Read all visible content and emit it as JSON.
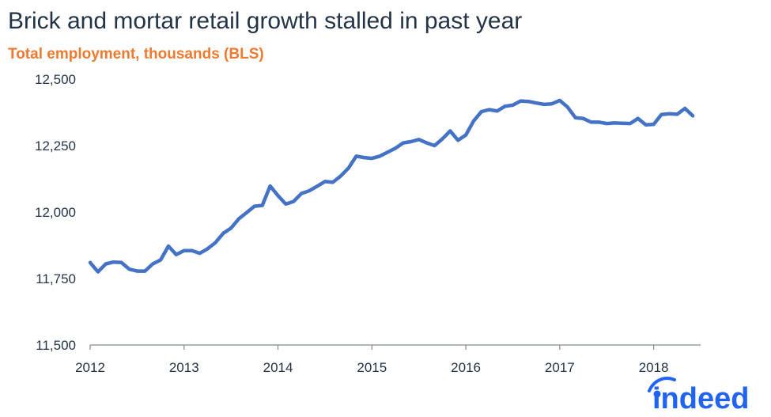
{
  "title": "Brick and mortar retail growth stalled in past year",
  "subtitle": "Total employment, thousands (BLS)",
  "brand": {
    "name": "indeed",
    "color": "#2164f3",
    "icon": "indeed-logo"
  },
  "colors": {
    "line": "#4472c4",
    "title": "#243447",
    "subtitle": "#ee7a30",
    "axis": "#7f8a97"
  },
  "chart_data": {
    "type": "line",
    "title": "Brick and mortar retail growth stalled in past year",
    "subtitle": "Total employment, thousands (BLS)",
    "xlabel": "",
    "ylabel": "",
    "ylim": [
      11500,
      12500
    ],
    "yticks": [
      11500,
      11750,
      12000,
      12250,
      12500
    ],
    "ytick_labels": [
      "11,500",
      "11,750",
      "12,000",
      "12,250",
      "12,500"
    ],
    "xlim": [
      "2012-01",
      "2018-07"
    ],
    "xticks": [
      "2012",
      "2013",
      "2014",
      "2015",
      "2016",
      "2017",
      "2018"
    ],
    "grid": false,
    "legend": "none",
    "series": [
      {
        "x": [
          "2012-01",
          "2012-02",
          "2012-03",
          "2012-04",
          "2012-05",
          "2012-06",
          "2012-07",
          "2012-08",
          "2012-09",
          "2012-10",
          "2012-11",
          "2012-12",
          "2013-01",
          "2013-02",
          "2013-03",
          "2013-04",
          "2013-05",
          "2013-06",
          "2013-07",
          "2013-08",
          "2013-09",
          "2013-10",
          "2013-11",
          "2013-12",
          "2014-01",
          "2014-02",
          "2014-03",
          "2014-04",
          "2014-05",
          "2014-06",
          "2014-07",
          "2014-08",
          "2014-09",
          "2014-10",
          "2014-11",
          "2014-12",
          "2015-01",
          "2015-02",
          "2015-03",
          "2015-04",
          "2015-05",
          "2015-06",
          "2015-07",
          "2015-08",
          "2015-09",
          "2015-10",
          "2015-11",
          "2015-12",
          "2016-01",
          "2016-02",
          "2016-03",
          "2016-04",
          "2016-05",
          "2016-06",
          "2016-07",
          "2016-08",
          "2016-09",
          "2016-10",
          "2016-11",
          "2016-12",
          "2017-01",
          "2017-02",
          "2017-03",
          "2017-04",
          "2017-05",
          "2017-06",
          "2017-07",
          "2017-08",
          "2017-09",
          "2017-10",
          "2017-11",
          "2017-12",
          "2018-01",
          "2018-02",
          "2018-03",
          "2018-04",
          "2018-05",
          "2018-06"
        ],
        "values": [
          11810,
          11775,
          11805,
          11812,
          11810,
          11785,
          11778,
          11778,
          11805,
          11820,
          11872,
          11840,
          11855,
          11855,
          11845,
          11862,
          11885,
          11920,
          11940,
          11975,
          11998,
          12022,
          12025,
          12098,
          12062,
          12030,
          12040,
          12070,
          12080,
          12097,
          12115,
          12112,
          12135,
          12165,
          12210,
          12205,
          12202,
          12210,
          12225,
          12240,
          12260,
          12265,
          12273,
          12260,
          12250,
          12275,
          12305,
          12270,
          12290,
          12343,
          12378,
          12385,
          12380,
          12398,
          12402,
          12418,
          12416,
          12410,
          12405,
          12407,
          12420,
          12395,
          12355,
          12352,
          12338,
          12338,
          12333,
          12335,
          12334,
          12333,
          12352,
          12328,
          12330,
          12367,
          12370,
          12368,
          12390,
          12362
        ]
      }
    ]
  }
}
